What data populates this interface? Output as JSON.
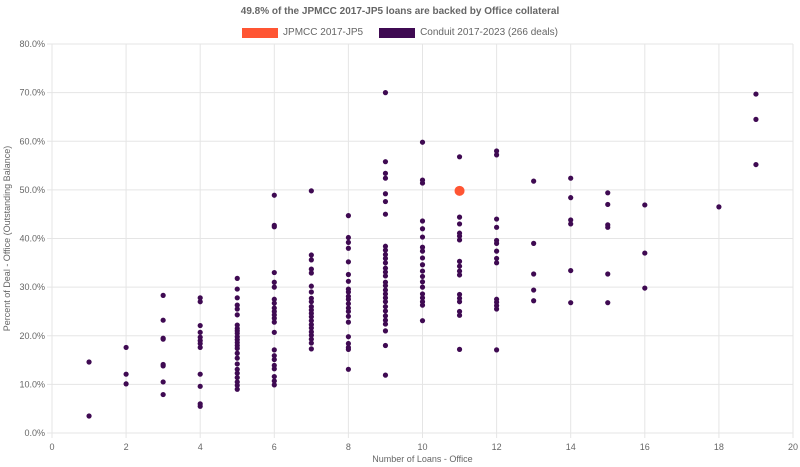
{
  "chart_data": {
    "type": "scatter",
    "title": "49.8% of the JPMCC 2017-JP5 loans are backed by Office collateral",
    "xlabel": "Number of Loans - Office",
    "ylabel": "Percent of Deal - Office (Outstanding Balance)",
    "xlim": [
      0,
      20
    ],
    "ylim": [
      0,
      80
    ],
    "x_ticks": [
      0,
      2,
      4,
      6,
      8,
      10,
      12,
      14,
      16,
      18,
      20
    ],
    "y_ticks": [
      0,
      10,
      20,
      30,
      40,
      50,
      60,
      70,
      80
    ],
    "y_tick_suffix": "%",
    "grid": true,
    "legend_position": "top",
    "series": [
      {
        "name": "JPMCC 2017-JP5",
        "color": "#ff5533",
        "points": [
          [
            11,
            49.8
          ]
        ]
      },
      {
        "name": "Conduit 2017-2023 (266 deals)",
        "color": "#3f0a52",
        "points": [
          [
            1,
            14.6
          ],
          [
            1,
            3.5
          ],
          [
            2,
            17.6
          ],
          [
            2,
            12.1
          ],
          [
            2,
            10.1
          ],
          [
            3,
            28.3
          ],
          [
            3,
            23.2
          ],
          [
            3,
            19.5
          ],
          [
            3,
            19.3
          ],
          [
            3,
            14.1
          ],
          [
            3,
            13.8
          ],
          [
            3,
            10.5
          ],
          [
            3,
            7.9
          ],
          [
            4,
            27.8
          ],
          [
            4,
            27.0
          ],
          [
            4,
            22.1
          ],
          [
            4,
            20.7
          ],
          [
            4,
            19.7
          ],
          [
            4,
            19.0
          ],
          [
            4,
            18.4
          ],
          [
            4,
            17.6
          ],
          [
            4,
            12.1
          ],
          [
            4,
            9.6
          ],
          [
            4,
            6.0
          ],
          [
            4,
            5.5
          ],
          [
            5,
            31.8
          ],
          [
            5,
            29.6
          ],
          [
            5,
            27.8
          ],
          [
            5,
            26.3
          ],
          [
            5,
            25.5
          ],
          [
            5,
            24.3
          ],
          [
            5,
            22.2
          ],
          [
            5,
            21.5
          ],
          [
            5,
            21.0
          ],
          [
            5,
            20.5
          ],
          [
            5,
            19.8
          ],
          [
            5,
            19.2
          ],
          [
            5,
            18.6
          ],
          [
            5,
            18.0
          ],
          [
            5,
            17.4
          ],
          [
            5,
            16.4
          ],
          [
            5,
            15.4
          ],
          [
            5,
            14.2
          ],
          [
            5,
            13.1
          ],
          [
            5,
            12.3
          ],
          [
            5,
            11.4
          ],
          [
            5,
            10.5
          ],
          [
            5,
            9.8
          ],
          [
            5,
            9.0
          ],
          [
            6,
            48.9
          ],
          [
            6,
            42.7
          ],
          [
            6,
            42.4
          ],
          [
            6,
            33.0
          ],
          [
            6,
            31.0
          ],
          [
            6,
            30.0
          ],
          [
            6,
            27.5
          ],
          [
            6,
            26.7
          ],
          [
            6,
            25.7
          ],
          [
            6,
            25.0
          ],
          [
            6,
            24.3
          ],
          [
            6,
            23.6
          ],
          [
            6,
            22.8
          ],
          [
            6,
            20.7
          ],
          [
            6,
            17.1
          ],
          [
            6,
            15.9
          ],
          [
            6,
            15.1
          ],
          [
            6,
            13.9
          ],
          [
            6,
            13.2
          ],
          [
            6,
            11.6
          ],
          [
            6,
            10.7
          ],
          [
            6,
            9.9
          ],
          [
            7,
            49.8
          ],
          [
            7,
            36.6
          ],
          [
            7,
            35.6
          ],
          [
            7,
            33.7
          ],
          [
            7,
            32.9
          ],
          [
            7,
            30.2
          ],
          [
            7,
            29.0
          ],
          [
            7,
            27.7
          ],
          [
            7,
            27.0
          ],
          [
            7,
            26.0
          ],
          [
            7,
            25.3
          ],
          [
            7,
            24.6
          ],
          [
            7,
            23.9
          ],
          [
            7,
            23.1
          ],
          [
            7,
            22.3
          ],
          [
            7,
            21.6
          ],
          [
            7,
            20.8
          ],
          [
            7,
            20.1
          ],
          [
            7,
            19.3
          ],
          [
            7,
            18.5
          ],
          [
            7,
            17.3
          ],
          [
            8,
            44.7
          ],
          [
            8,
            40.2
          ],
          [
            8,
            39.2
          ],
          [
            8,
            38.0
          ],
          [
            8,
            35.2
          ],
          [
            8,
            32.6
          ],
          [
            8,
            31.2
          ],
          [
            8,
            29.6
          ],
          [
            8,
            29.0
          ],
          [
            8,
            28.1
          ],
          [
            8,
            27.5
          ],
          [
            8,
            26.6
          ],
          [
            8,
            25.7
          ],
          [
            8,
            25.0
          ],
          [
            8,
            24.0
          ],
          [
            8,
            22.8
          ],
          [
            8,
            19.8
          ],
          [
            8,
            18.4
          ],
          [
            8,
            17.6
          ],
          [
            8,
            17.2
          ],
          [
            8,
            13.1
          ],
          [
            9,
            70.0
          ],
          [
            9,
            55.8
          ],
          [
            9,
            53.4
          ],
          [
            9,
            52.4
          ],
          [
            9,
            49.2
          ],
          [
            9,
            47.6
          ],
          [
            9,
            45.0
          ],
          [
            9,
            38.4
          ],
          [
            9,
            37.6
          ],
          [
            9,
            36.7
          ],
          [
            9,
            35.9
          ],
          [
            9,
            35.0
          ],
          [
            9,
            33.9
          ],
          [
            9,
            33.1
          ],
          [
            9,
            32.3
          ],
          [
            9,
            31.0
          ],
          [
            9,
            30.3
          ],
          [
            9,
            29.4
          ],
          [
            9,
            28.6
          ],
          [
            9,
            27.8
          ],
          [
            9,
            27.0
          ],
          [
            9,
            26.0
          ],
          [
            9,
            25.1
          ],
          [
            9,
            24.1
          ],
          [
            9,
            23.2
          ],
          [
            9,
            22.4
          ],
          [
            9,
            21.0
          ],
          [
            9,
            18.0
          ],
          [
            9,
            11.9
          ],
          [
            10,
            59.8
          ],
          [
            10,
            52.0
          ],
          [
            10,
            51.4
          ],
          [
            10,
            43.6
          ],
          [
            10,
            42.0
          ],
          [
            10,
            40.3
          ],
          [
            10,
            38.2
          ],
          [
            10,
            37.4
          ],
          [
            10,
            36.0
          ],
          [
            10,
            34.6
          ],
          [
            10,
            33.3
          ],
          [
            10,
            32.2
          ],
          [
            10,
            31.1
          ],
          [
            10,
            30.0
          ],
          [
            10,
            28.6
          ],
          [
            10,
            27.8
          ],
          [
            10,
            27.0
          ],
          [
            10,
            26.3
          ],
          [
            10,
            23.1
          ],
          [
            11,
            56.8
          ],
          [
            11,
            44.4
          ],
          [
            11,
            43.0
          ],
          [
            11,
            41.1
          ],
          [
            11,
            40.5
          ],
          [
            11,
            39.7
          ],
          [
            11,
            35.3
          ],
          [
            11,
            34.3
          ],
          [
            11,
            33.3
          ],
          [
            11,
            32.5
          ],
          [
            11,
            28.5
          ],
          [
            11,
            27.7
          ],
          [
            11,
            27.0
          ],
          [
            11,
            25.0
          ],
          [
            11,
            24.2
          ],
          [
            11,
            17.2
          ],
          [
            12,
            58.0
          ],
          [
            12,
            57.2
          ],
          [
            12,
            44.0
          ],
          [
            12,
            42.3
          ],
          [
            12,
            39.6
          ],
          [
            12,
            39.0
          ],
          [
            12,
            37.4
          ],
          [
            12,
            35.9
          ],
          [
            12,
            35.0
          ],
          [
            12,
            27.5
          ],
          [
            12,
            26.9
          ],
          [
            12,
            26.2
          ],
          [
            12,
            25.5
          ],
          [
            12,
            17.1
          ],
          [
            13,
            51.8
          ],
          [
            13,
            39.0
          ],
          [
            13,
            32.7
          ],
          [
            13,
            29.4
          ],
          [
            13,
            27.2
          ],
          [
            14,
            52.4
          ],
          [
            14,
            48.4
          ],
          [
            14,
            43.8
          ],
          [
            14,
            43.0
          ],
          [
            14,
            33.4
          ],
          [
            14,
            26.8
          ],
          [
            15,
            49.4
          ],
          [
            15,
            47.0
          ],
          [
            15,
            42.8
          ],
          [
            15,
            42.3
          ],
          [
            15,
            32.7
          ],
          [
            15,
            26.8
          ],
          [
            16,
            46.9
          ],
          [
            16,
            37.0
          ],
          [
            16,
            29.8
          ],
          [
            18,
            46.5
          ],
          [
            19,
            69.7
          ],
          [
            19,
            64.5
          ],
          [
            19,
            55.2
          ]
        ]
      }
    ]
  }
}
